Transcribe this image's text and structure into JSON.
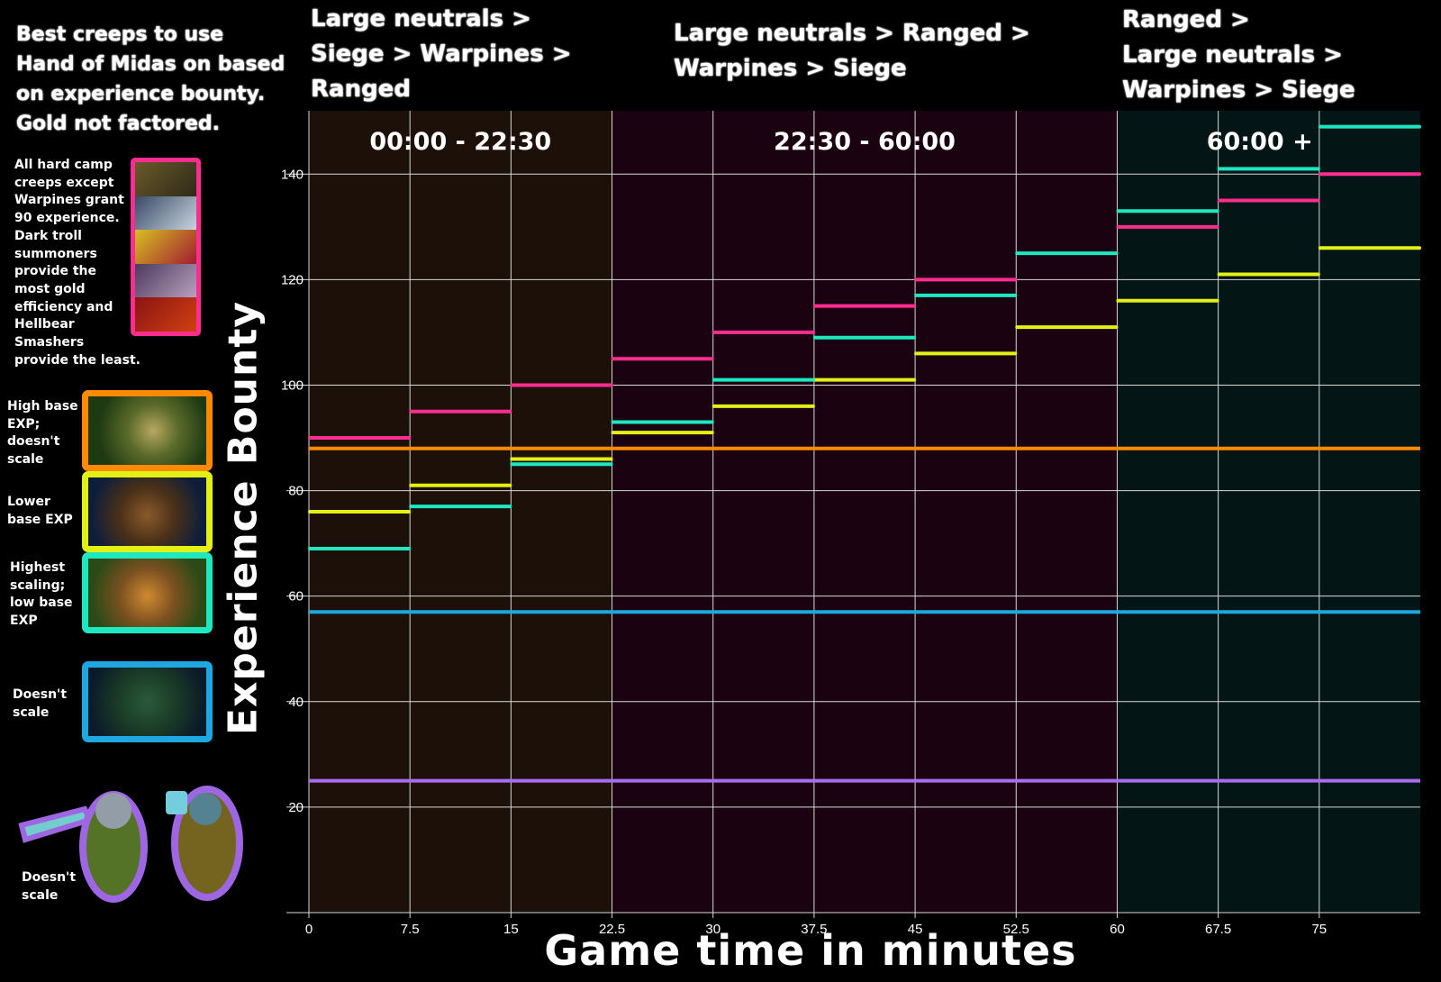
{
  "intro": {
    "lines": [
      "Best creeps to use",
      "Hand of Midas on based",
      "on experience bounty.",
      "Gold not factored."
    ]
  },
  "order_notes": [
    {
      "lines": [
        "Large neutrals >",
        "Siege > Warpines >",
        "Ranged"
      ]
    },
    {
      "lines": [
        "Large neutrals > Ranged >",
        "Warpines > Siege"
      ]
    },
    {
      "lines": [
        "Ranged >",
        "Large neutrals >",
        "Warpines > Siege"
      ]
    }
  ],
  "hard_camp_note": {
    "lines": [
      "All hard camp",
      "creeps except",
      "Warpines grant",
      "90 experience.",
      "Dark troll",
      "summoners",
      "provide the",
      "most gold",
      "efficiency and",
      "Hellbear",
      "Smashers",
      "provide the least."
    ]
  },
  "legend": [
    {
      "lines": [
        "High base",
        "EXP;",
        "doesn't",
        "scale"
      ],
      "color": "#ff8a00"
    },
    {
      "lines": [
        "Lower",
        "base EXP"
      ],
      "color": "#e3f016"
    },
    {
      "lines": [
        "Highest",
        "scaling;",
        "low base",
        "EXP"
      ],
      "color": "#1de8c0"
    },
    {
      "lines": [
        "Doesn't",
        "scale"
      ],
      "color": "#1ea7e0"
    },
    {
      "lines": [
        "Doesn't",
        "scale"
      ],
      "color": "#a86cf0"
    }
  ],
  "colors": {
    "period1_bg": "#1c1008",
    "period2_bg": "#1a0210",
    "period3_bg": "#031514",
    "hard_camp_border": "#ff2d8f",
    "grid": "#d8d8d8"
  },
  "chart_data": {
    "type": "line",
    "xlabel": "Game time in minutes",
    "ylabel": "Experience Bounty",
    "x_ticks": [
      "0",
      "7.5",
      "15",
      "22.5",
      "30",
      "37.5",
      "45",
      "52.5",
      "60",
      "67.5",
      "75"
    ],
    "y_ticks": [
      "20",
      "40",
      "60",
      "80",
      "100",
      "120",
      "140"
    ],
    "xlim": [
      0,
      82.5
    ],
    "ylim": [
      0,
      152
    ],
    "grid": true,
    "periods": [
      {
        "label": "00:00 - 22:30",
        "start": 0,
        "end": 22.5
      },
      {
        "label": "22:30 - 60:00",
        "start": 22.5,
        "end": 60
      },
      {
        "label": "60:00 +",
        "start": 60,
        "end": 82.5
      }
    ],
    "step_edges": [
      0,
      7.5,
      15,
      22.5,
      30,
      37.5,
      45,
      52.5,
      60,
      67.5,
      75,
      82.5
    ],
    "series": [
      {
        "color": "#ff2d8f",
        "values": [
          90,
          95,
          100,
          105,
          110,
          115,
          120,
          null,
          130,
          135,
          140
        ]
      },
      {
        "color": "#e3f016",
        "values": [
          76,
          81,
          86,
          91,
          96,
          101,
          106,
          111,
          116,
          121,
          126
        ]
      },
      {
        "color": "#1de8c0",
        "values": [
          69,
          77,
          85,
          93,
          101,
          109,
          117,
          125,
          133,
          141,
          149
        ]
      },
      {
        "color": "#ff8a00",
        "constant": 88
      },
      {
        "color": "#1ea7e0",
        "constant": 57
      },
      {
        "color": "#a86cf0",
        "constant": 25
      }
    ]
  }
}
